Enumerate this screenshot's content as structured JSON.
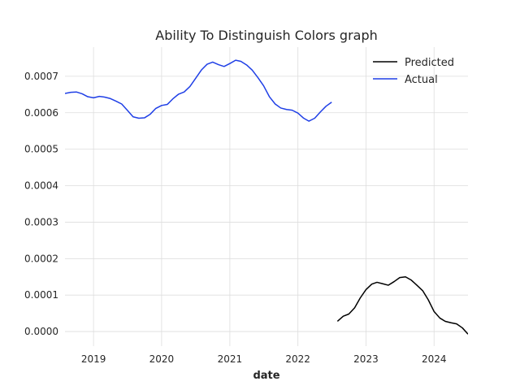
{
  "chart_data": {
    "type": "line",
    "title": "Ability To Distinguish Colors graph",
    "xlabel": "date",
    "ylabel": "",
    "x_ticks": [
      "2019",
      "2020",
      "2021",
      "2022",
      "2023",
      "2024"
    ],
    "y_ticks": [
      "0.0000",
      "0.0001",
      "0.0002",
      "0.0003",
      "0.0004",
      "0.0005",
      "0.0006",
      "0.0007"
    ],
    "xlim": [
      "2018-08-01",
      "2024-07-01"
    ],
    "ylim": [
      -4e-05,
      0.00078
    ],
    "grid": true,
    "legend_position": "top-right",
    "series": [
      {
        "name": "Predicted",
        "color": "#000000",
        "x": [
          "2022-08-01",
          "2022-09-01",
          "2022-10-01",
          "2022-11-01",
          "2022-12-01",
          "2023-01-01",
          "2023-02-01",
          "2023-03-01",
          "2023-04-01",
          "2023-05-01",
          "2023-06-01",
          "2023-07-01",
          "2023-08-01",
          "2023-09-01",
          "2023-10-01",
          "2023-11-01",
          "2023-12-01",
          "2024-01-01",
          "2024-02-01",
          "2024-03-01",
          "2024-04-01",
          "2024-05-01",
          "2024-06-01",
          "2024-07-01"
        ],
        "values": [
          2.8e-05,
          4.2e-05,
          4.8e-05,
          6.5e-05,
          9.2e-05,
          0.000115,
          0.00013,
          0.000135,
          0.000131,
          0.000127,
          0.000137,
          0.000148,
          0.00015,
          0.000141,
          0.000127,
          0.000112,
          8.7e-05,
          5.5e-05,
          3.7e-05,
          2.8e-05,
          2.4e-05,
          2.1e-05,
          1e-05,
          -7e-06
        ]
      },
      {
        "name": "Actual",
        "color": "#1f3fe6",
        "x": [
          "2018-08-01",
          "2018-09-01",
          "2018-10-01",
          "2018-11-01",
          "2018-12-01",
          "2019-01-01",
          "2019-02-01",
          "2019-03-01",
          "2019-04-01",
          "2019-05-01",
          "2019-06-01",
          "2019-07-01",
          "2019-08-01",
          "2019-09-01",
          "2019-10-01",
          "2019-11-01",
          "2019-12-01",
          "2020-01-01",
          "2020-02-01",
          "2020-03-01",
          "2020-04-01",
          "2020-05-01",
          "2020-06-01",
          "2020-07-01",
          "2020-08-01",
          "2020-09-01",
          "2020-10-01",
          "2020-11-01",
          "2020-12-01",
          "2021-01-01",
          "2021-02-01",
          "2021-03-01",
          "2021-04-01",
          "2021-05-01",
          "2021-06-01",
          "2021-07-01",
          "2021-08-01",
          "2021-09-01",
          "2021-10-01",
          "2021-11-01",
          "2021-12-01",
          "2022-01-01",
          "2022-02-01",
          "2022-03-01",
          "2022-04-01",
          "2022-05-01",
          "2022-06-01",
          "2022-07-01"
        ],
        "values": [
          0.000653,
          0.000656,
          0.000657,
          0.000652,
          0.000644,
          0.000641,
          0.000645,
          0.000643,
          0.000639,
          0.000632,
          0.000624,
          0.000607,
          0.000589,
          0.000585,
          0.000586,
          0.000596,
          0.000612,
          0.00062,
          0.000623,
          0.000638,
          0.000651,
          0.000657,
          0.000672,
          0.000694,
          0.000717,
          0.000733,
          0.000739,
          0.000732,
          0.000727,
          0.000735,
          0.000744,
          0.000741,
          0.000731,
          0.000717,
          0.000696,
          0.000674,
          0.000644,
          0.000624,
          0.000613,
          0.000609,
          0.000607,
          0.000599,
          0.000585,
          0.000577,
          0.000585,
          0.000602,
          0.000618,
          0.000629
        ]
      }
    ]
  }
}
